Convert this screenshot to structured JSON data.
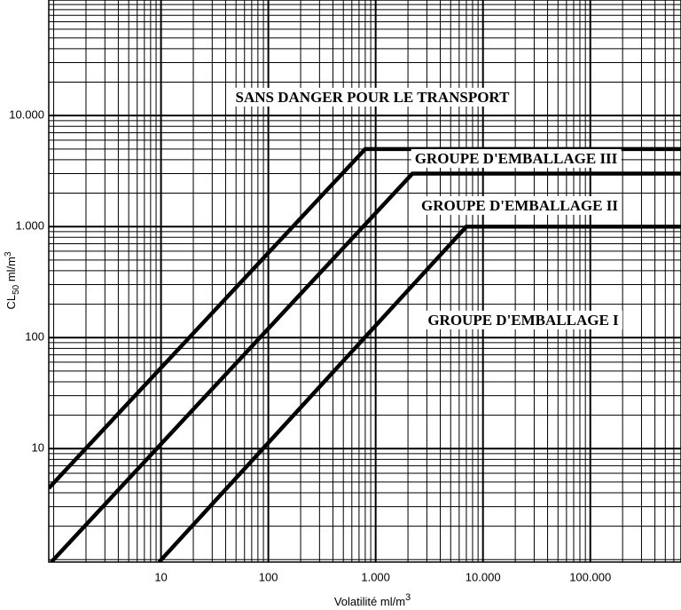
{
  "chart_data": {
    "type": "line",
    "xlabel": [
      "Volatilité ml/m",
      "3"
    ],
    "ylabel": [
      "CL",
      "50",
      " ml/m",
      "3"
    ],
    "xscale": "log",
    "yscale": "log",
    "grid": true,
    "xlim": [
      0.9,
      700000
    ],
    "ylim": [
      0.95,
      110000
    ],
    "xticks": [
      10,
      100,
      {
        "value": 1000,
        "label": "1.000"
      },
      {
        "value": 10000,
        "label": "10.000"
      },
      {
        "value": 100000,
        "label": "100.000"
      }
    ],
    "yticks": [
      10,
      100,
      {
        "value": 1000,
        "label": "1.000"
      },
      {
        "value": 10000,
        "label": "10.000"
      }
    ],
    "series": [
      {
        "color": "#000000",
        "x": [
          0.9,
          800,
          700000
        ],
        "values": [
          4.4,
          5000,
          5000
        ]
      },
      {
        "color": "#000000",
        "x": [
          0.95,
          2200,
          700000
        ],
        "values": [
          0.95,
          3000,
          3000
        ]
      },
      {
        "color": "#000000",
        "x": [
          9.6,
          7000,
          700000
        ],
        "values": [
          0.95,
          1000,
          1000
        ]
      }
    ],
    "annotations": [
      "SANS DANGER POUR LE TRANSPORT",
      "GROUPE D'EMBALLAGE III",
      "GROUPE D'EMBALLAGE II",
      "GROUPE D'EMBALLAGE I"
    ]
  }
}
